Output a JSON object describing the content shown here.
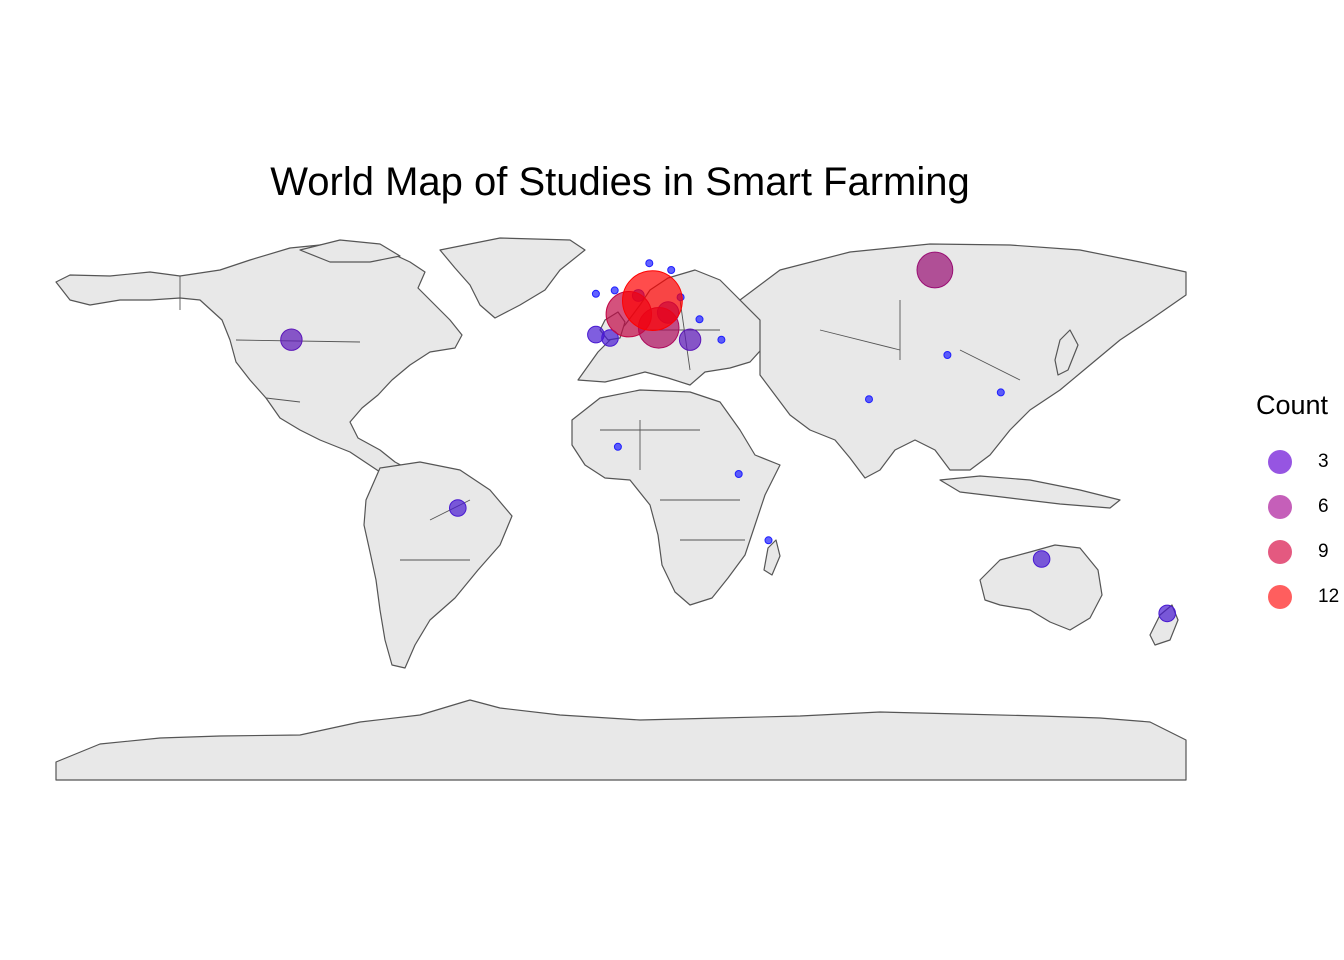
{
  "title": "World Map of Studies in Smart Farming",
  "legend": {
    "title": "Count",
    "items": [
      {
        "label": "3",
        "value": 3,
        "color": "#6a0dd6"
      },
      {
        "label": "6",
        "value": 6,
        "color": "#ad1b9b"
      },
      {
        "label": "9",
        "value": 9,
        "color": "#d8124a"
      },
      {
        "label": "12",
        "value": 12,
        "color": "#ff1a1a"
      }
    ]
  },
  "chart_data": {
    "type": "map",
    "projection": "equirectangular",
    "color_scale": {
      "low": "#1f1fff",
      "high": "#ff0000",
      "min": 1,
      "max": 12
    },
    "points": [
      {
        "region": "USA",
        "lon": -105,
        "lat": 39.5,
        "count": 4
      },
      {
        "region": "Brazil",
        "lon": -52,
        "lat": -10,
        "count": 3
      },
      {
        "region": "Russia",
        "lon": 100,
        "lat": 60,
        "count": 7
      },
      {
        "region": "Australia",
        "lon": 134,
        "lat": -25,
        "count": 3
      },
      {
        "region": "New Zealand",
        "lon": 174,
        "lat": -41,
        "count": 3
      },
      {
        "region": "Germany",
        "lon": 10,
        "lat": 51,
        "count": 12
      },
      {
        "region": "France",
        "lon": 2.5,
        "lat": 47,
        "count": 9
      },
      {
        "region": "Italy",
        "lon": 12,
        "lat": 43,
        "count": 8
      },
      {
        "region": "Austria",
        "lon": 15,
        "lat": 47.5,
        "count": 4
      },
      {
        "region": "Spain",
        "lon": -3.5,
        "lat": 40,
        "count": 3
      },
      {
        "region": "Portugal",
        "lon": -8,
        "lat": 41,
        "count": 3
      },
      {
        "region": "Greece",
        "lon": 22,
        "lat": 39.5,
        "count": 4
      },
      {
        "region": "Netherlands",
        "lon": 5.5,
        "lat": 52.5,
        "count": 2
      },
      {
        "region": "Norway",
        "lon": 9,
        "lat": 62,
        "count": 1
      },
      {
        "region": "Sweden",
        "lon": 16,
        "lat": 60,
        "count": 1
      },
      {
        "region": "Ireland",
        "lon": -8,
        "lat": 53,
        "count": 1
      },
      {
        "region": "UK",
        "lon": -2,
        "lat": 54,
        "count": 1
      },
      {
        "region": "Poland",
        "lon": 19,
        "lat": 52,
        "count": 1
      },
      {
        "region": "Romania",
        "lon": 25,
        "lat": 45.5,
        "count": 1
      },
      {
        "region": "Turkey",
        "lon": 32,
        "lat": 39.5,
        "count": 1
      },
      {
        "region": "China",
        "lon": 104,
        "lat": 35,
        "count": 1
      },
      {
        "region": "India",
        "lon": 79,
        "lat": 22,
        "count": 1
      },
      {
        "region": "Taiwan",
        "lon": 121,
        "lat": 24,
        "count": 1
      },
      {
        "region": "Ghana",
        "lon": -1,
        "lat": 8,
        "count": 1
      },
      {
        "region": "Kenya",
        "lon": 37.5,
        "lat": 0,
        "count": 1
      },
      {
        "region": "Madagascar",
        "lon": 47,
        "lat": -19.5,
        "count": 1
      }
    ]
  }
}
